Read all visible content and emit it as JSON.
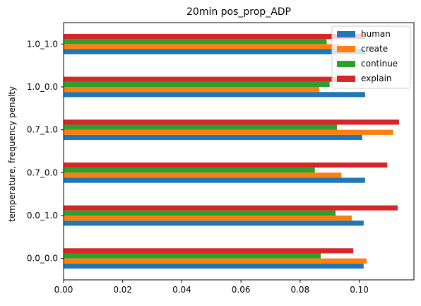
{
  "chart_data": {
    "type": "bar",
    "orientation": "horizontal",
    "title": "20min pos_prop_ADP",
    "xlabel": "",
    "ylabel": "temperature, frequency penalty",
    "categories": [
      "0.0_0.0",
      "0.0_1.0",
      "0.7_0.0",
      "0.7_1.0",
      "1.0_0.0",
      "1.0_1.0"
    ],
    "xlim": [
      0.0,
      0.1185
    ],
    "xticks": [
      "0.00",
      "0.02",
      "0.04",
      "0.06",
      "0.08",
      "0.10"
    ],
    "grid": false,
    "legend_position": "top-right",
    "series": [
      {
        "name": "human",
        "color": "#1f77b4",
        "values": [
          0.1015,
          0.1015,
          0.102,
          0.101,
          0.102,
          0.102
        ]
      },
      {
        "name": "create",
        "color": "#ff7f0e",
        "values": [
          0.1025,
          0.0975,
          0.094,
          0.1115,
          0.0865,
          0.0935
        ]
      },
      {
        "name": "continue",
        "color": "#2ca02c",
        "values": [
          0.087,
          0.092,
          0.085,
          0.0925,
          0.09,
          0.089
        ]
      },
      {
        "name": "explain",
        "color": "#d62728",
        "values": [
          0.098,
          0.113,
          0.1095,
          0.1135,
          0.096,
          0.102
        ]
      }
    ]
  }
}
